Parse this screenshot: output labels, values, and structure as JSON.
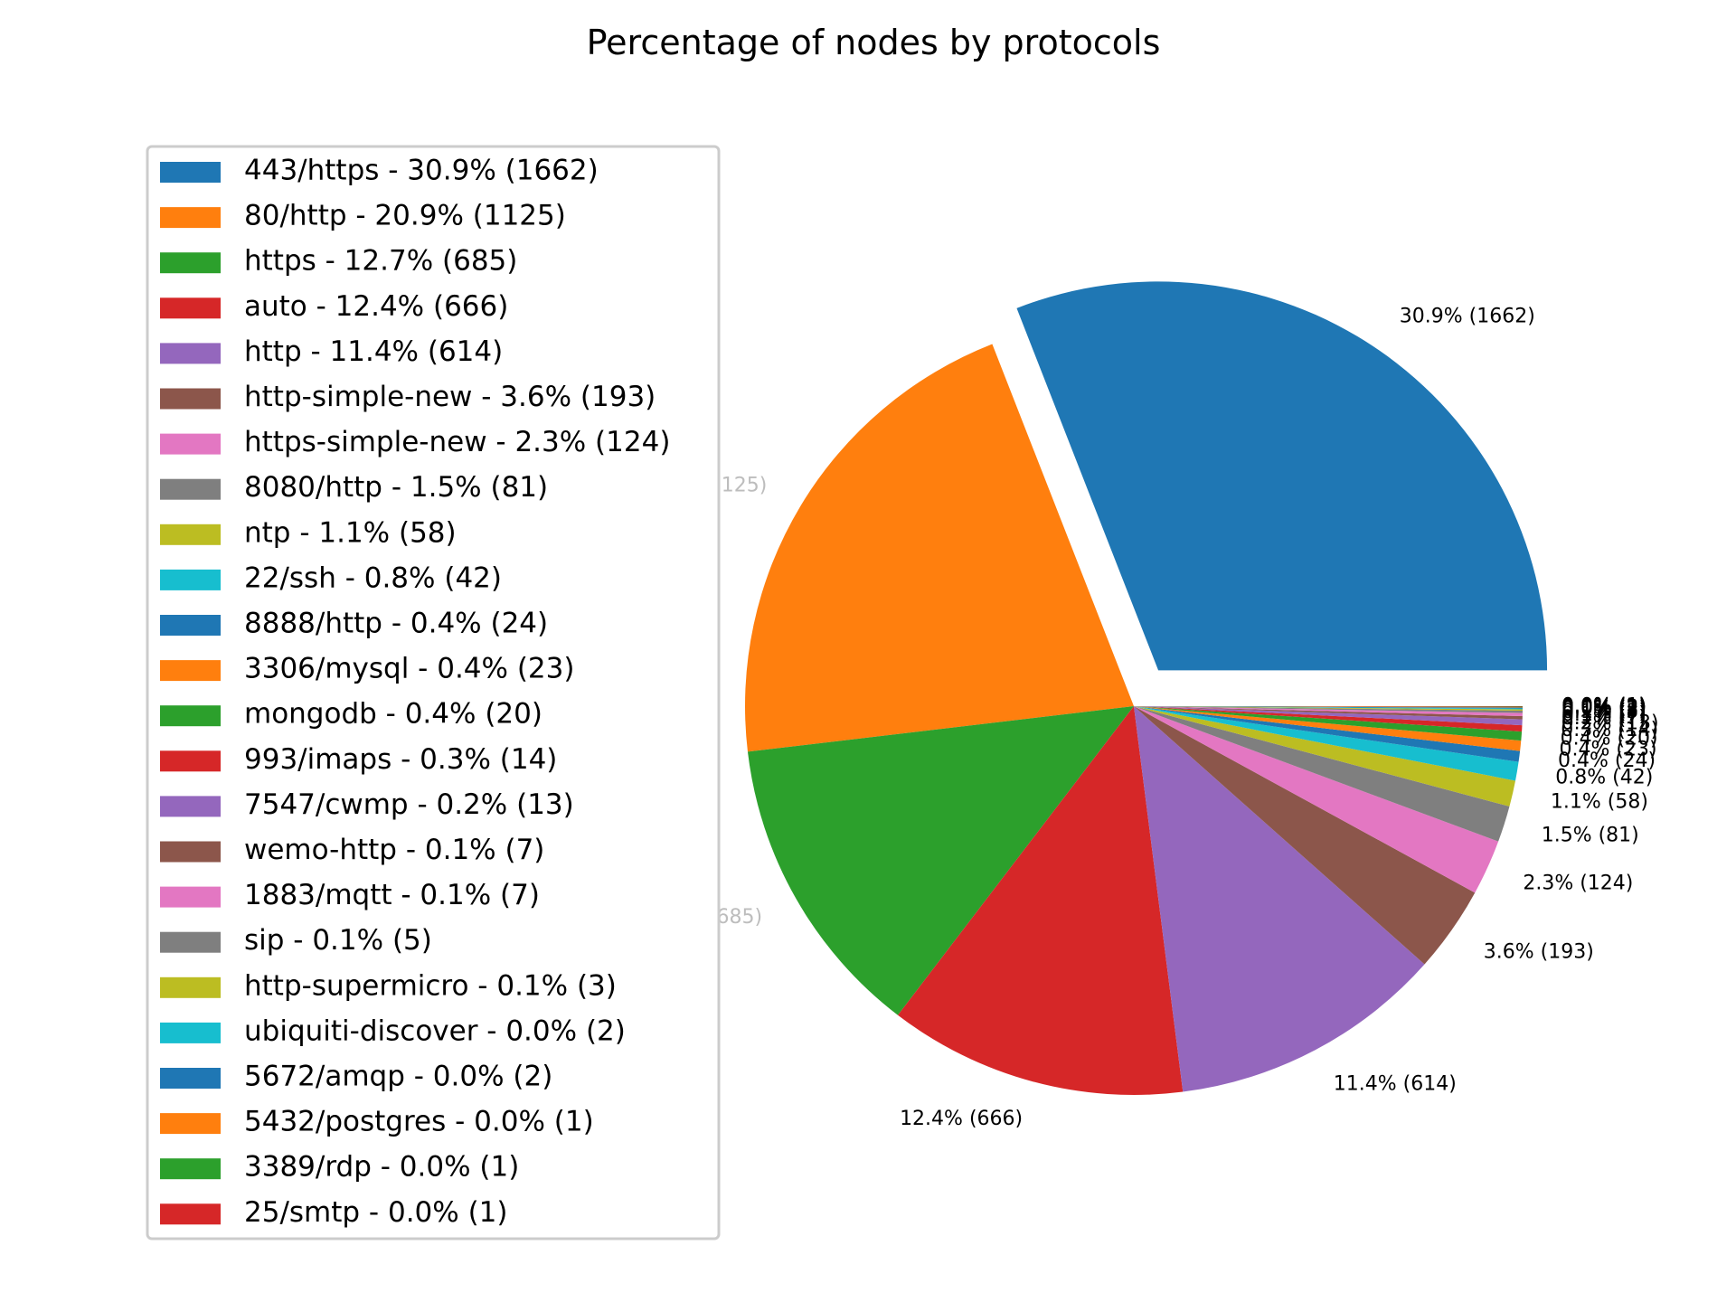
{
  "chart_data": {
    "type": "pie",
    "title": "Percentage of nodes by protocols",
    "legend_placement": "left",
    "explode": [
      1
    ],
    "slices": [
      {
        "name": "443/https",
        "value": 1662,
        "percent": "30.9%",
        "color": "#1f77b4",
        "legend": "443/https - 30.9% (1662)",
        "label": "30.9% (1662)"
      },
      {
        "name": "80/http",
        "value": 1125,
        "percent": "20.9%",
        "color": "#ff7f0e",
        "legend": "80/http - 20.9% (1125)",
        "label": "20.9% (1125)"
      },
      {
        "name": "https",
        "value": 685,
        "percent": "12.7%",
        "color": "#2ca02c",
        "legend": "https - 12.7% (685)",
        "label": "12.7% (685)"
      },
      {
        "name": "auto",
        "value": 666,
        "percent": "12.4%",
        "color": "#d62728",
        "legend": "auto - 12.4% (666)",
        "label": "12.4% (666)"
      },
      {
        "name": "http",
        "value": 614,
        "percent": "11.4%",
        "color": "#9467bd",
        "legend": "http - 11.4% (614)",
        "label": "11.4% (614)"
      },
      {
        "name": "http-simple-new",
        "value": 193,
        "percent": "3.6%",
        "color": "#8c564b",
        "legend": "http-simple-new - 3.6% (193)",
        "label": "3.6% (193)"
      },
      {
        "name": "https-simple-new",
        "value": 124,
        "percent": "2.3%",
        "color": "#e377c2",
        "legend": "https-simple-new - 2.3% (124)",
        "label": "2.3% (124)"
      },
      {
        "name": "8080/http",
        "value": 81,
        "percent": "1.5%",
        "color": "#7f7f7f",
        "legend": "8080/http - 1.5% (81)",
        "label": "1.5% (81)"
      },
      {
        "name": "ntp",
        "value": 58,
        "percent": "1.1%",
        "color": "#bcbd22",
        "legend": "ntp - 1.1% (58)",
        "label": "1.1% (58)"
      },
      {
        "name": "22/ssh",
        "value": 42,
        "percent": "0.8%",
        "color": "#17becf",
        "legend": "22/ssh - 0.8% (42)",
        "label": "0.8% (42)"
      },
      {
        "name": "8888/http",
        "value": 24,
        "percent": "0.4%",
        "color": "#1f77b4",
        "legend": "8888/http - 0.4% (24)",
        "label": "0.4% (24)"
      },
      {
        "name": "3306/mysql",
        "value": 23,
        "percent": "0.4%",
        "color": "#ff7f0e",
        "legend": "3306/mysql - 0.4% (23)",
        "label": "0.4% (23)"
      },
      {
        "name": "mongodb",
        "value": 20,
        "percent": "0.4%",
        "color": "#2ca02c",
        "legend": "mongodb - 0.4% (20)",
        "label": "0.4% (20)"
      },
      {
        "name": "993/imaps",
        "value": 14,
        "percent": "0.3%",
        "color": "#d62728",
        "legend": "993/imaps - 0.3% (14)",
        "label": "0.3% (14)"
      },
      {
        "name": "7547/cwmp",
        "value": 13,
        "percent": "0.2%",
        "color": "#9467bd",
        "legend": "7547/cwmp - 0.2% (13)",
        "label": "0.2% (13)"
      },
      {
        "name": "wemo-http",
        "value": 7,
        "percent": "0.1%",
        "color": "#8c564b",
        "legend": "wemo-http - 0.1% (7)",
        "label": "0.1% (7)"
      },
      {
        "name": "1883/mqtt",
        "value": 7,
        "percent": "0.1%",
        "color": "#e377c2",
        "legend": "1883/mqtt - 0.1% (7)",
        "label": "0.1% (7)"
      },
      {
        "name": "sip",
        "value": 5,
        "percent": "0.1%",
        "color": "#7f7f7f",
        "legend": "sip - 0.1% (5)",
        "label": "0.1% (5)"
      },
      {
        "name": "http-supermicro",
        "value": 3,
        "percent": "0.1%",
        "color": "#bcbd22",
        "legend": "http-supermicro - 0.1% (3)",
        "label": "0.1% (3)"
      },
      {
        "name": "ubiquiti-discover",
        "value": 2,
        "percent": "0.0%",
        "color": "#17becf",
        "legend": "ubiquiti-discover - 0.0% (2)",
        "label": "0.0% (2)"
      },
      {
        "name": "5672/amqp",
        "value": 2,
        "percent": "0.0%",
        "color": "#1f77b4",
        "legend": "5672/amqp - 0.0% (2)",
        "label": "0.0% (2)"
      },
      {
        "name": "5432/postgres",
        "value": 1,
        "percent": "0.0%",
        "color": "#ff7f0e",
        "legend": "5432/postgres - 0.0% (1)",
        "label": "0.0% (1)"
      },
      {
        "name": "3389/rdp",
        "value": 1,
        "percent": "0.0%",
        "color": "#2ca02c",
        "legend": "3389/rdp - 0.0% (1)",
        "label": "0.0% (1)"
      },
      {
        "name": "25/smtp",
        "value": 1,
        "percent": "0.0%",
        "color": "#d62728",
        "legend": "25/smtp - 0.0% (1)",
        "label": "0.0% (1)"
      }
    ]
  }
}
